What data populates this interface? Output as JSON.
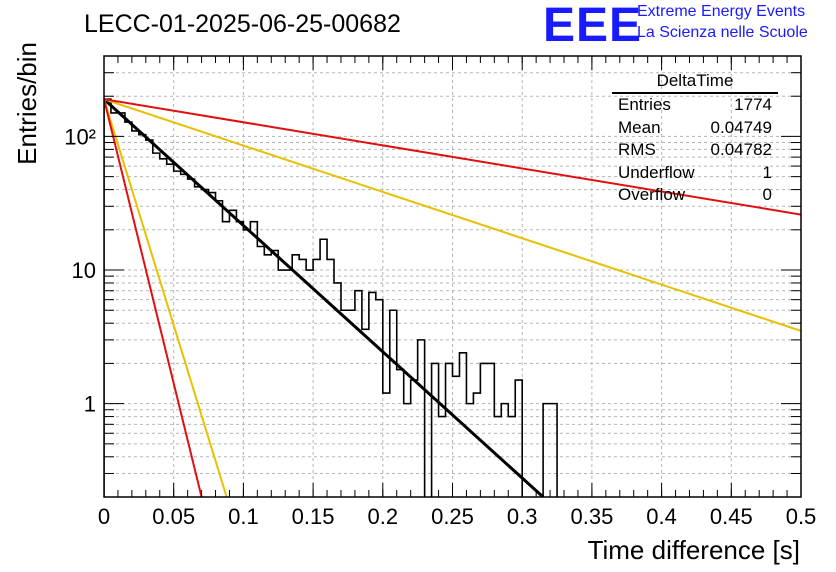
{
  "header": {
    "title": "LECC-01-2025-06-25-00682"
  },
  "logo": {
    "mark": "EEE",
    "line1": "Extreme Energy Events",
    "line2": "La Scienza nelle Scuole",
    "color": "#1a1aff"
  },
  "stats": {
    "name": "DeltaTime",
    "rows": [
      {
        "label": "Entries",
        "value": "1774"
      },
      {
        "label": "Mean",
        "value": "0.04749"
      },
      {
        "label": "RMS",
        "value": "0.04782"
      },
      {
        "label": "Underflow",
        "value": "1"
      },
      {
        "label": "Overflow",
        "value": "0"
      }
    ]
  },
  "chart_data": {
    "type": "histogram",
    "title": "",
    "xlabel": "Time difference [s]",
    "ylabel": "Entries/bin",
    "xlim": [
      0,
      0.5
    ],
    "ylim": [
      0.2,
      400
    ],
    "log_y": true,
    "grid": true,
    "x_ticks": [
      "0",
      "0.05",
      "0.1",
      "0.15",
      "0.2",
      "0.25",
      "0.3",
      "0.35",
      "0.4",
      "0.45",
      "0.5"
    ],
    "y_ticks": [
      {
        "value": 1,
        "label": "1"
      },
      {
        "value": 10,
        "label": "10"
      },
      {
        "value": 100,
        "label": "10²"
      }
    ],
    "bin_width": 0.005,
    "histogram_values": [
      190,
      150,
      150,
      128,
      110,
      103,
      94,
      75,
      68,
      62,
      55,
      52,
      48,
      42,
      40,
      38,
      33,
      23,
      28,
      23,
      20,
      23,
      15,
      13,
      14,
      10,
      10,
      13,
      12,
      10,
      12,
      17,
      12,
      8,
      5,
      5,
      7,
      3.6,
      6.8,
      6,
      1.2,
      5,
      1.8,
      1.0,
      1.5,
      3,
      0.1,
      2,
      0.8,
      2,
      1.6,
      2.4,
      1,
      1.2,
      2,
      2,
      0.8,
      1,
      0.8,
      1.5,
      0.1,
      0.1,
      0.1,
      1,
      1,
      0.1,
      0.1,
      0.1,
      0.1,
      0.1,
      0.1,
      0.1,
      0.1,
      0.1,
      0.1,
      0.1,
      0.1,
      0.1,
      0.1,
      0.1,
      0.1,
      0.1,
      0.1,
      0.1,
      0.1,
      0.1,
      0.1,
      0.1,
      0.1,
      0.1,
      0.1,
      0.1,
      0.1,
      0.1,
      0.1,
      0.1,
      0.1,
      0.1,
      0.1,
      0.1
    ],
    "fit_curves": [
      {
        "color": "#000000",
        "x": [
          0,
          0.315
        ],
        "y": [
          190,
          0.2
        ]
      },
      {
        "color": "#e8c000",
        "x": [
          0,
          0.5
        ],
        "y": [
          190,
          3.5
        ]
      },
      {
        "color": "#e8c000",
        "x": [
          0,
          0.088
        ],
        "y": [
          190,
          0.2
        ]
      },
      {
        "color": "#e01010",
        "x": [
          0,
          0.5
        ],
        "y": [
          190,
          26
        ]
      },
      {
        "color": "#e01010",
        "x": [
          0,
          0.07
        ],
        "y": [
          190,
          0.2
        ]
      }
    ]
  }
}
